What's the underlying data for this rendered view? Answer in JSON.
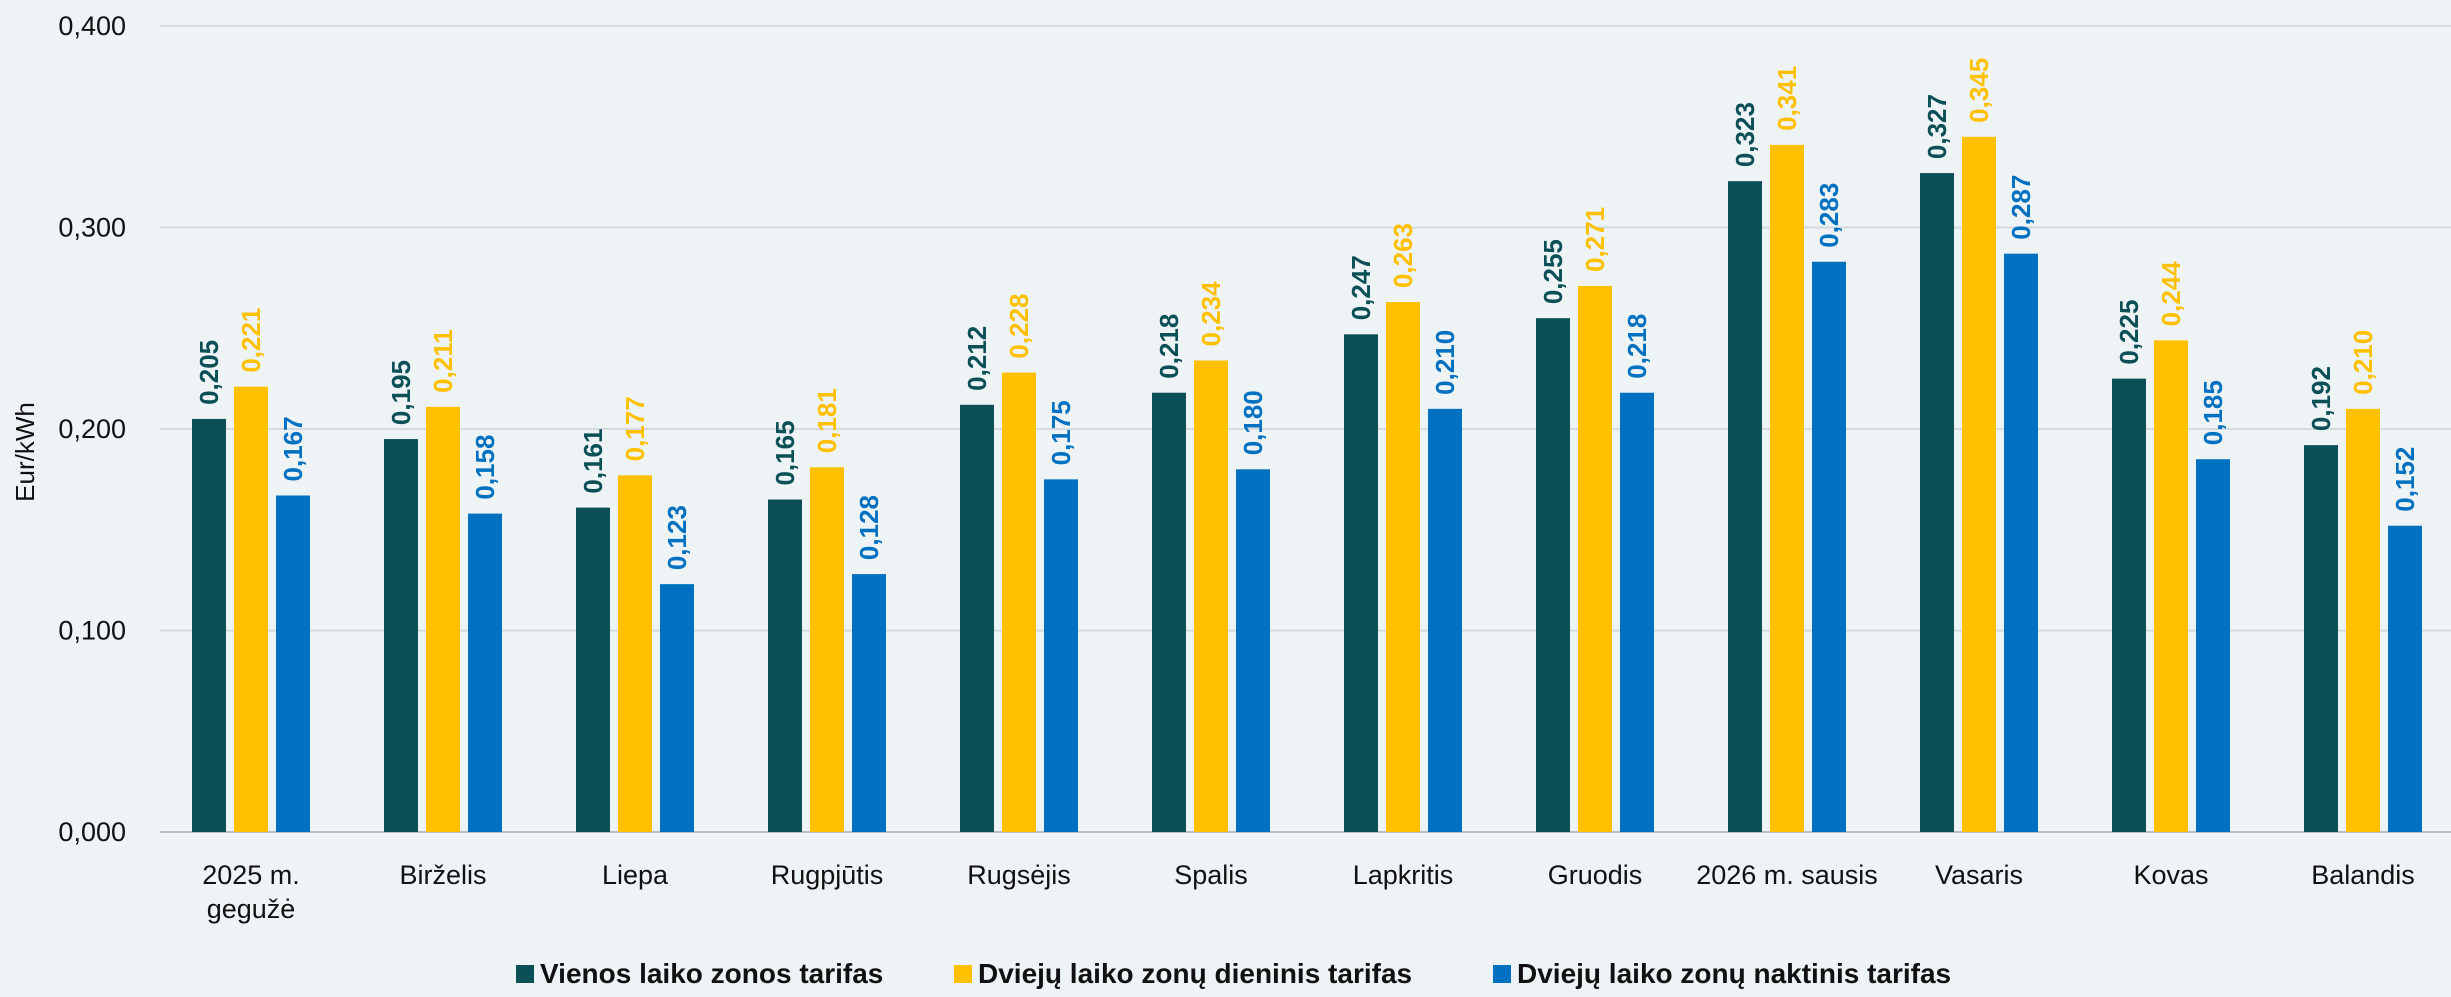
{
  "chart_data": {
    "type": "bar",
    "ylabel": "Eur/kWh",
    "ylim": [
      0,
      0.4
    ],
    "yticks": [
      0,
      0.1,
      0.2,
      0.3,
      0.4
    ],
    "ytick_labels": [
      "0,000",
      "0,100",
      "0,200",
      "0,300",
      "0,400"
    ],
    "grid": true,
    "legend_position": "bottom",
    "categories": [
      [
        "2025 m.",
        "gegužė"
      ],
      [
        "Birželis"
      ],
      [
        "Liepa"
      ],
      [
        "Rugpjūtis"
      ],
      [
        "Rugsėjis"
      ],
      [
        "Spalis"
      ],
      [
        "Lapkritis"
      ],
      [
        "Gruodis"
      ],
      [
        "2026 m. sausis"
      ],
      [
        "Vasaris"
      ],
      [
        "Kovas"
      ],
      [
        "Balandis"
      ]
    ],
    "series": [
      {
        "name": "Vienos laiko zonos tarifas",
        "color": "#0b4f57",
        "values": [
          0.205,
          0.195,
          0.161,
          0.165,
          0.212,
          0.218,
          0.247,
          0.255,
          0.323,
          0.327,
          0.225,
          0.192
        ],
        "labels": [
          "0,205",
          "0,195",
          "0,161",
          "0,165",
          "0,212",
          "0,218",
          "0,247",
          "0,255",
          "0,323",
          "0,327",
          "0,225",
          "0,192"
        ]
      },
      {
        "name": "Dviejų laiko zonų dieninis tarifas",
        "color": "#ffc000",
        "values": [
          0.221,
          0.211,
          0.177,
          0.181,
          0.228,
          0.234,
          0.263,
          0.271,
          0.341,
          0.345,
          0.244,
          0.21
        ],
        "labels": [
          "0,221",
          "0,211",
          "0,177",
          "0,181",
          "0,228",
          "0,234",
          "0,263",
          "0,271",
          "0,341",
          "0,345",
          "0,244",
          "0,210"
        ]
      },
      {
        "name": "Dviejų laiko zonų naktinis tarifas",
        "color": "#0070c0",
        "values": [
          0.167,
          0.158,
          0.123,
          0.128,
          0.175,
          0.18,
          0.21,
          0.218,
          0.283,
          0.287,
          0.185,
          0.152
        ],
        "labels": [
          "0,167",
          "0,158",
          "0,123",
          "0,128",
          "0,175",
          "0,180",
          "0,210",
          "0,218",
          "0,283",
          "0,287",
          "0,185",
          "0,152"
        ]
      }
    ]
  }
}
